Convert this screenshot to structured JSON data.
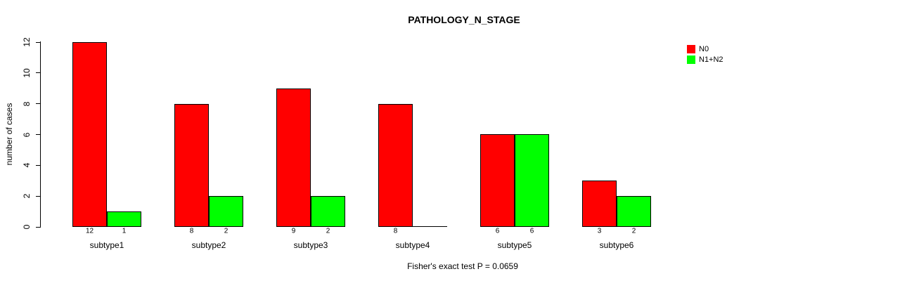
{
  "chart_data": {
    "type": "bar",
    "title": "PATHOLOGY_N_STAGE",
    "ylabel": "number of cases",
    "xlabel": "",
    "categories": [
      "subtype1",
      "subtype2",
      "subtype3",
      "subtype4",
      "subtype5",
      "subtype6"
    ],
    "series": [
      {
        "name": "N0",
        "color": "#FF0000",
        "values": [
          12,
          8,
          9,
          8,
          6,
          3
        ]
      },
      {
        "name": "N1+N2",
        "color": "#00FF00",
        "values": [
          1,
          2,
          2,
          0,
          6,
          2
        ]
      }
    ],
    "bar_value_labels": [
      [
        "12",
        "1"
      ],
      [
        "8",
        "2"
      ],
      [
        "9",
        "2"
      ],
      [
        "8",
        ""
      ],
      [
        "6",
        "6"
      ],
      [
        "3",
        "2"
      ]
    ],
    "yticks": [
      0,
      2,
      4,
      6,
      8,
      10,
      12
    ],
    "ylim": [
      0,
      12
    ],
    "grid": false,
    "legend_position": "top-right",
    "annotation": "Fisher's exact test P = 0.0659"
  },
  "legend": {
    "items": [
      {
        "label": "N0",
        "color": "#FF0000"
      },
      {
        "label": "N1+N2",
        "color": "#00FF00"
      }
    ]
  },
  "colors": {
    "foreground": "#000000",
    "background": "#FFFFFF"
  }
}
